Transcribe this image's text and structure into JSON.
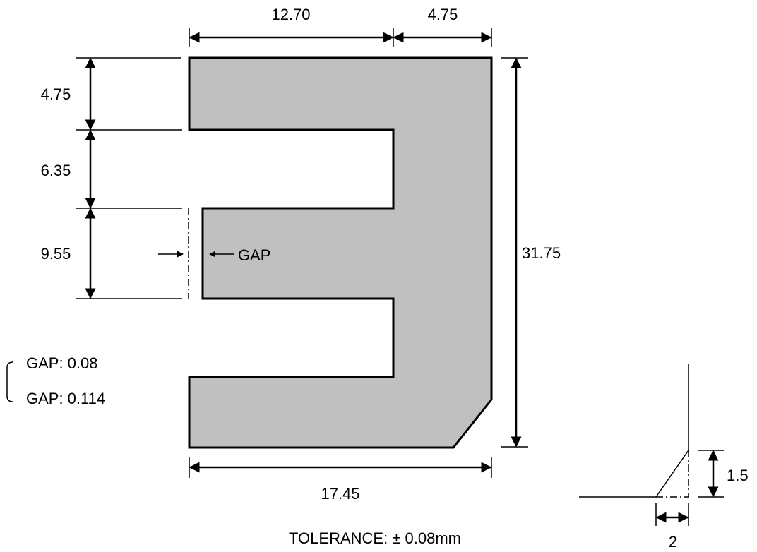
{
  "colors": {
    "core_fill": "#c0c0c0",
    "line": "#000000",
    "background": "#ffffff"
  },
  "dimensions": {
    "top_left_width": "12.70",
    "top_right_width": "4.75",
    "left_top_height": "4.75",
    "left_middle_height": "6.35",
    "left_bottom_height": "9.55",
    "total_height": "31.75",
    "total_width": "17.45",
    "chamfer_height": "1.5",
    "chamfer_width": "2"
  },
  "labels": {
    "gap": "GAP",
    "gap_option_1": "GAP: 0.08",
    "gap_option_2": "GAP: 0.114",
    "tolerance": "TOLERANCE: ± 0.08mm"
  }
}
